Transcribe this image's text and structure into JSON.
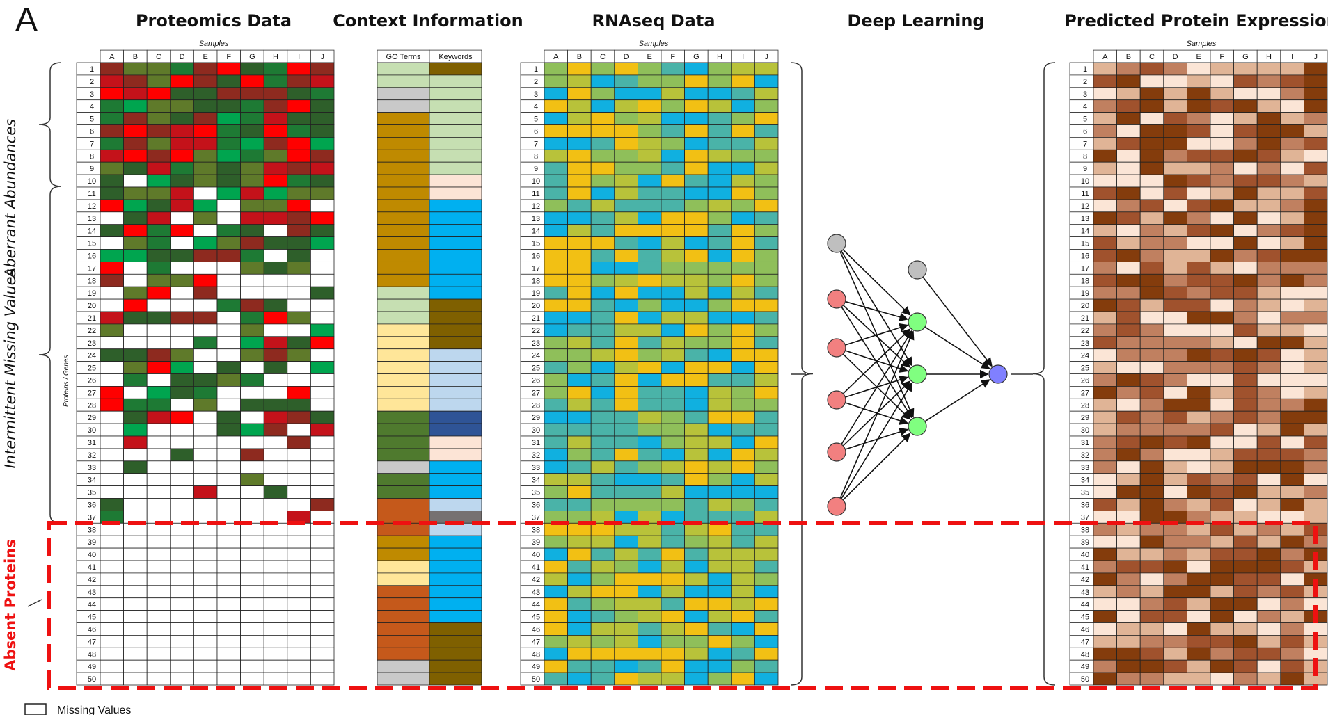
{
  "figure": {
    "panel_letter": "A",
    "titles": {
      "proteomics": "Proteomics Data",
      "context": "Context Information",
      "rnaseq": "RNAseq Data",
      "deep_learning": "Deep Learning",
      "predicted": "Predicted Protein Expression"
    },
    "samples_label": "Samples",
    "proteins_genes_label": "Proteins / Genes",
    "columns": [
      "A",
      "B",
      "C",
      "D",
      "E",
      "F",
      "G",
      "H",
      "I",
      "J"
    ],
    "context_columns": [
      "GO Terms",
      "Keywords"
    ],
    "row_count": 50,
    "side_labels": {
      "aberrant": "Aberrant Abundances",
      "intermittent": "Intermittent Missing Values",
      "absent": "Absent Proteins"
    },
    "legend_missing": "Missing Values",
    "colors": {
      "proteomics": [
        "#c4121a",
        "#8e2a1f",
        "#ff0000",
        "#2e5f2a",
        "#1e7a34",
        "#00a54f",
        "#5f7a2a",
        "#ffffff"
      ],
      "go_terms": [
        "#4f7a2e",
        "#bf8a00",
        "#c6dfb2",
        "#c9c9c9",
        "#c5591b",
        "#ffe699"
      ],
      "keywords": [
        "#7f6000",
        "#2f5496",
        "#00b0f0",
        "#bdd7ee",
        "#c6dfb2",
        "#767171",
        "#fce4d6"
      ],
      "rnaseq": [
        "#f2c014",
        "#b8c23a",
        "#8fbf5a",
        "#4ab3a8",
        "#10b0e0"
      ],
      "predicted": [
        "#843c0c",
        "#a0522d",
        "#c08060",
        "#e0b496",
        "#fbe5d6"
      ],
      "absent_box": "#ee1111",
      "node_bias": "#bfbfbf",
      "node_input": "#f28080",
      "node_hidden": "#80ff80",
      "node_output": "#8080ff"
    },
    "network": {
      "input_nodes": 5,
      "hidden_nodes": 3,
      "output_nodes": 1,
      "bias_nodes": 2
    }
  }
}
